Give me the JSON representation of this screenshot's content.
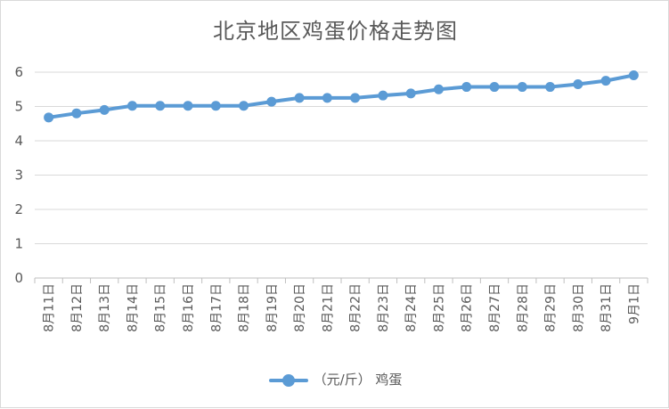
{
  "chart_data": {
    "type": "line",
    "title": "北京地区鸡蛋价格走势图",
    "categories": [
      "8月11日",
      "8月12日",
      "8月13日",
      "8月14日",
      "8月15日",
      "8月16日",
      "8月17日",
      "8月18日",
      "8月19日",
      "8月20日",
      "8月21日",
      "8月22日",
      "8月23日",
      "8月24日",
      "8月25日",
      "8月26日",
      "8月27日",
      "8月28日",
      "8月29日",
      "8月30日",
      "8月31日",
      "9月1日"
    ],
    "series": [
      {
        "name": "（元/斤） 鸡蛋",
        "color": "#5b9bd5",
        "values": [
          4.68,
          4.8,
          4.9,
          5.02,
          5.02,
          5.02,
          5.02,
          5.02,
          5.14,
          5.25,
          5.25,
          5.25,
          5.32,
          5.38,
          5.5,
          5.57,
          5.57,
          5.57,
          5.57,
          5.65,
          5.75,
          5.91
        ]
      }
    ],
    "ylim": [
      0,
      6
    ],
    "yticks": [
      0,
      1,
      2,
      3,
      4,
      5,
      6
    ],
    "grid": true,
    "legend": "bottom",
    "xlabel": "",
    "ylabel": ""
  }
}
